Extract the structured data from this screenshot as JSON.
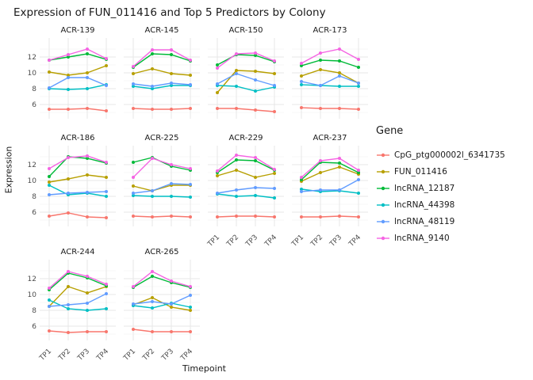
{
  "title": "Expression of FUN_011416 and Top 5 Predictors by Colony",
  "legend": {
    "title": "Gene",
    "entries": [
      {
        "label": "CpG_ptg000002l_6341735",
        "color": "#F8766D"
      },
      {
        "label": "FUN_011416",
        "color": "#B79F00"
      },
      {
        "label": "lncRNA_12187",
        "color": "#00BA38"
      },
      {
        "label": "lncRNA_44398",
        "color": "#00BFC4"
      },
      {
        "label": "lncRNA_48119",
        "color": "#619CFF"
      },
      {
        "label": "lncRNA_9140",
        "color": "#F564E3"
      }
    ]
  },
  "chart_data": {
    "type": "line",
    "title": "Expression of FUN_011416 and Top 5 Predictors by Colony",
    "xlabel": "Timepoint",
    "ylabel": "Expression",
    "x_categories": [
      "TP1",
      "TP2",
      "TP3",
      "TP4"
    ],
    "yticks": [
      6,
      8,
      10,
      12
    ],
    "ylim": [
      4.6,
      14.0
    ],
    "grid": true,
    "legend_position": "right",
    "series_names": [
      "CpG_ptg000002l_6341735",
      "FUN_011416",
      "lncRNA_12187",
      "lncRNA_44398",
      "lncRNA_48119",
      "lncRNA_9140"
    ],
    "facets": [
      {
        "name": "ACR-139",
        "series": [
          [
            5.4,
            5.4,
            5.5,
            5.2
          ],
          [
            10.1,
            9.7,
            10.0,
            10.9
          ],
          [
            11.6,
            12.0,
            12.4,
            11.7
          ],
          [
            8.0,
            7.9,
            8.0,
            8.5
          ],
          [
            8.1,
            9.4,
            9.4,
            8.4
          ],
          [
            11.6,
            12.3,
            13.0,
            11.8
          ]
        ]
      },
      {
        "name": "ACR-145",
        "series": [
          [
            5.5,
            5.4,
            5.4,
            5.5
          ],
          [
            9.9,
            10.5,
            9.9,
            9.7
          ],
          [
            10.7,
            12.4,
            12.3,
            11.5
          ],
          [
            8.3,
            8.0,
            8.4,
            8.4
          ],
          [
            8.6,
            8.3,
            8.7,
            8.5
          ],
          [
            10.8,
            12.9,
            12.9,
            11.6
          ]
        ]
      },
      {
        "name": "ACR-150",
        "series": [
          [
            5.5,
            5.5,
            5.3,
            5.1
          ],
          [
            7.5,
            10.3,
            10.2,
            9.9
          ],
          [
            11.0,
            12.3,
            12.2,
            11.4
          ],
          [
            8.4,
            8.3,
            7.7,
            8.2
          ],
          [
            8.6,
            9.9,
            9.1,
            8.4
          ],
          [
            10.6,
            12.4,
            12.5,
            11.5
          ]
        ]
      },
      {
        "name": "ACR-173",
        "series": [
          [
            5.6,
            5.5,
            5.5,
            5.4
          ],
          [
            9.6,
            10.4,
            10.0,
            8.7
          ],
          [
            10.9,
            11.6,
            11.5,
            10.7
          ],
          [
            8.5,
            8.4,
            8.3,
            8.3
          ],
          [
            8.9,
            8.4,
            9.6,
            8.7
          ],
          [
            11.2,
            12.5,
            13.0,
            11.7
          ]
        ]
      },
      {
        "name": "ACR-186",
        "series": [
          [
            5.5,
            5.9,
            5.4,
            5.3
          ],
          [
            9.8,
            10.2,
            10.7,
            10.4
          ],
          [
            10.5,
            13.0,
            12.8,
            12.2
          ],
          [
            9.4,
            8.2,
            8.4,
            8.0
          ],
          [
            8.2,
            8.4,
            8.5,
            8.6
          ],
          [
            11.5,
            12.9,
            13.1,
            12.3
          ]
        ]
      },
      {
        "name": "ACR-225",
        "series": [
          [
            5.5,
            5.4,
            5.5,
            5.4
          ],
          [
            9.3,
            8.7,
            9.4,
            9.4
          ],
          [
            12.3,
            12.9,
            11.8,
            11.3
          ],
          [
            8.1,
            8.0,
            8.0,
            7.9
          ],
          [
            8.4,
            8.7,
            9.6,
            9.5
          ],
          [
            10.4,
            12.8,
            12.0,
            11.5
          ]
        ]
      },
      {
        "name": "ACR-229",
        "series": [
          [
            5.4,
            5.5,
            5.5,
            5.4
          ],
          [
            10.6,
            11.3,
            10.4,
            10.9
          ],
          [
            11.0,
            12.6,
            12.5,
            11.3
          ],
          [
            8.3,
            8.0,
            8.1,
            7.8
          ],
          [
            8.4,
            8.8,
            9.1,
            9.0
          ],
          [
            11.2,
            13.2,
            12.9,
            11.4
          ]
        ]
      },
      {
        "name": "ACR-237",
        "series": [
          [
            5.4,
            5.4,
            5.5,
            5.4
          ],
          [
            9.9,
            11.0,
            11.7,
            10.8
          ],
          [
            10.1,
            12.3,
            12.2,
            11.0
          ],
          [
            8.9,
            8.6,
            8.7,
            8.4
          ],
          [
            8.6,
            8.8,
            8.8,
            10.1
          ],
          [
            10.4,
            12.5,
            12.8,
            11.3
          ]
        ]
      },
      {
        "name": "ACR-244",
        "series": [
          [
            5.4,
            5.2,
            5.3,
            5.3
          ],
          [
            8.5,
            11.0,
            10.2,
            11.0
          ],
          [
            10.6,
            12.7,
            12.1,
            11.1
          ],
          [
            9.3,
            8.2,
            8.0,
            8.2
          ],
          [
            8.5,
            8.7,
            8.9,
            10.1
          ],
          [
            10.8,
            12.9,
            12.3,
            11.3
          ]
        ]
      },
      {
        "name": "ACR-265",
        "series": [
          [
            5.6,
            5.3,
            5.3,
            5.3
          ],
          [
            8.7,
            9.6,
            8.4,
            8.0
          ],
          [
            10.9,
            12.3,
            11.5,
            10.9
          ],
          [
            8.6,
            8.3,
            8.9,
            8.4
          ],
          [
            8.8,
            9.1,
            8.8,
            9.9
          ],
          [
            11.0,
            12.9,
            11.7,
            11.0
          ]
        ]
      }
    ]
  }
}
